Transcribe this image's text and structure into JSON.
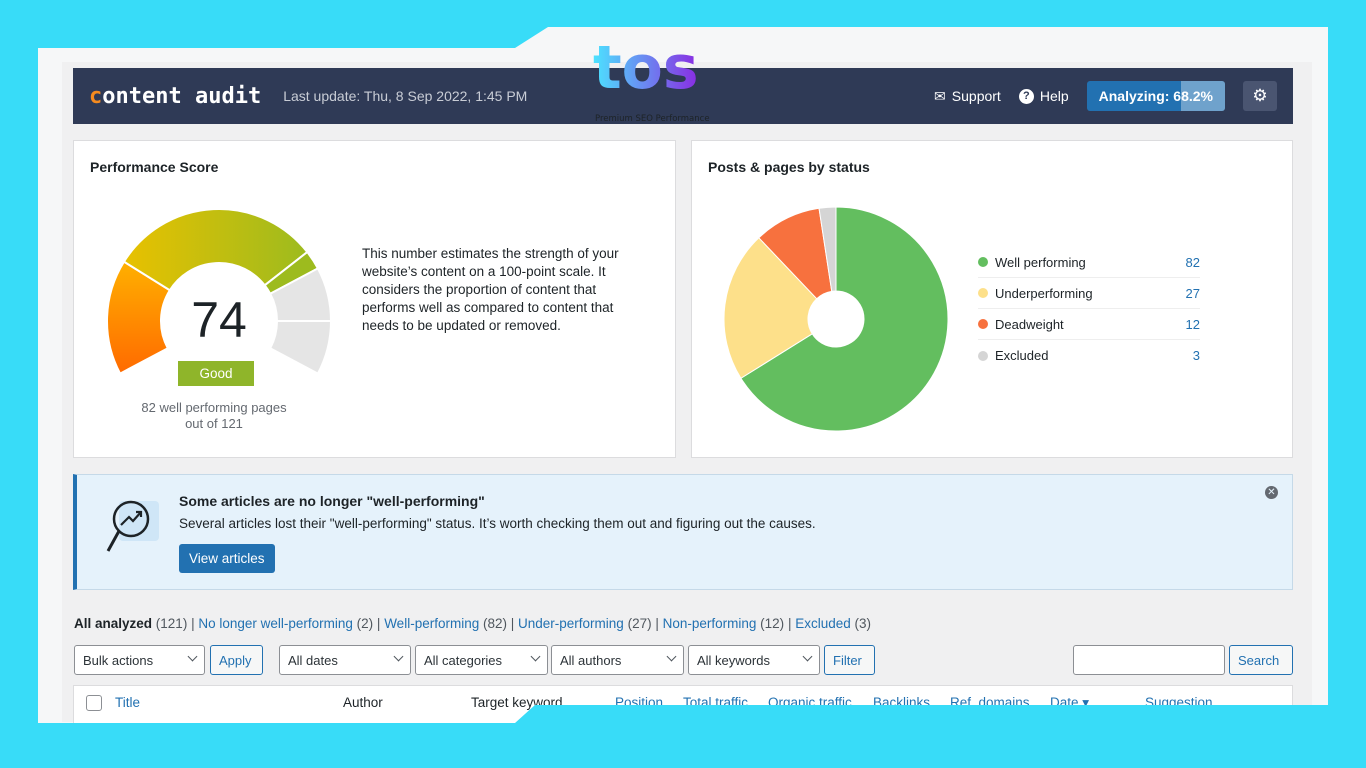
{
  "brand": {
    "logo_text": "tos",
    "tagline": "Premium SEO Performance"
  },
  "header": {
    "logo_first": "c",
    "logo_rest": "ontent audit",
    "last_update": "Last update: Thu, 8 Sep 2022, 1:45 PM",
    "support": "Support",
    "help": "Help",
    "analyzing": "Analyzing: 68.2%",
    "analyzing_progress": 68.2
  },
  "performance": {
    "title": "Performance Score",
    "score": "74",
    "rating": "Good",
    "caption1": "82 well performing pages",
    "caption2": "out of 121",
    "description": "This number estimates the strength of your website’s content on a 100-point scale. It considers the proportion of content that performs well as compared to content that needs to be updated or removed."
  },
  "status": {
    "title": "Posts & pages by status"
  },
  "chart_data": {
    "type": "pie",
    "donut": true,
    "categories": [
      "Well performing",
      "Underperforming",
      "Deadweight",
      "Excluded"
    ],
    "values": [
      82,
      27,
      12,
      3
    ],
    "colors": [
      "#63be5f",
      "#fde08a",
      "#f7713e",
      "#d5d5d5"
    ]
  },
  "notice": {
    "title": "Some articles are no longer \"well-performing\"",
    "text": "Several articles lost their \"well-performing\" status. It’s worth checking them out and figuring out the causes.",
    "button": "View articles"
  },
  "tabs": [
    {
      "label": "All analyzed",
      "count": "(121)"
    },
    {
      "label": "No longer well-performing",
      "count": "(2)"
    },
    {
      "label": "Well-performing",
      "count": "(82)"
    },
    {
      "label": "Under-performing",
      "count": "(27)"
    },
    {
      "label": "Non-performing",
      "count": "(12)"
    },
    {
      "label": "Excluded",
      "count": "(3)"
    }
  ],
  "filters": {
    "bulk": "Bulk actions",
    "apply": "Apply",
    "dates": "All dates",
    "categories": "All categories",
    "authors": "All authors",
    "keywords": "All keywords",
    "filter": "Filter",
    "search": "Search"
  },
  "table": {
    "columns": [
      "Title",
      "Author",
      "Target keyword",
      "Position",
      "Total traffic",
      "Organic traffic",
      "Backlinks",
      "Ref. domains",
      "Date ▾",
      "Suggestion"
    ]
  }
}
